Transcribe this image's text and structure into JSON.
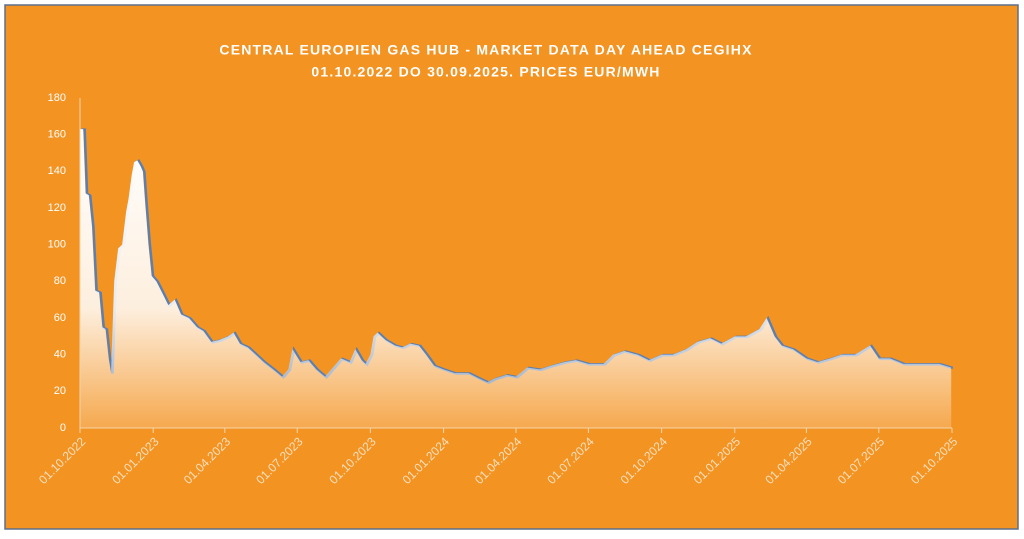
{
  "chart_data": {
    "type": "area",
    "title": "CENTRAL EUROPIEN GAS HUB - MARKET DATA DAY AHEAD CEGIHX",
    "subtitle": "01.10.2022 DO 30.09.2025. PRICES EUR/MWH",
    "line_color": "#5b7fb0",
    "area_color": "#ffffff",
    "background": "#f39322",
    "x": [
      "01.10.2022",
      "05.10.2022",
      "08.10.2022",
      "12.10.2022",
      "16.10.2022",
      "20.10.2022",
      "25.10.2022",
      "29.10.2022",
      "02.11.2022",
      "06.11.2022",
      "09.11.2022",
      "13.11.2022",
      "18.11.2022",
      "23.11.2022",
      "28.11.2022",
      "01.12.2022",
      "05.12.2022",
      "08.12.2022",
      "12.12.2022",
      "16.12.2022",
      "19.12.2022",
      "22.12.2022",
      "26.12.2022",
      "30.12.2022",
      "05.01.2023",
      "12.01.2023",
      "20.01.2023",
      "28.01.2023",
      "05.02.2023",
      "15.02.2023",
      "25.02.2023",
      "05.03.2023",
      "15.03.2023",
      "25.03.2023",
      "05.04.2023",
      "12.04.2023",
      "20.04.2023",
      "30.04.2023",
      "10.05.2023",
      "20.05.2023",
      "01.06.2023",
      "12.06.2023",
      "20.06.2023",
      "25.06.2023",
      "05.07.2023",
      "15.07.2023",
      "25.07.2023",
      "05.08.2023",
      "15.08.2023",
      "25.08.2023",
      "05.09.2023",
      "12.09.2023",
      "20.09.2023",
      "25.09.2023",
      "01.10.2023",
      "05.10.2023",
      "10.10.2023",
      "20.10.2023",
      "01.11.2023",
      "10.11.2023",
      "20.11.2023",
      "01.12.2023",
      "10.12.2023",
      "20.12.2023",
      "01.01.2024",
      "15.01.2024",
      "01.02.2024",
      "15.02.2024",
      "25.02.2024",
      "05.03.2024",
      "20.03.2024",
      "01.04.2024",
      "15.04.2024",
      "01.05.2024",
      "15.05.2024",
      "01.06.2024",
      "15.06.2024",
      "01.07.2024",
      "20.07.2024",
      "01.08.2024",
      "15.08.2024",
      "01.09.2024",
      "15.09.2024",
      "01.10.2024",
      "15.10.2024",
      "01.11.2024",
      "15.11.2024",
      "01.12.2024",
      "15.12.2024",
      "01.01.2025",
      "15.01.2025",
      "01.02.2025",
      "10.02.2025",
      "20.02.2025",
      "01.03.2025",
      "15.03.2025",
      "01.04.2025",
      "15.04.2025",
      "01.05.2025",
      "15.05.2025",
      "01.06.2025",
      "20.06.2025",
      "01.07.2025",
      "15.07.2025",
      "01.08.2025",
      "15.08.2025",
      "01.09.2025",
      "15.09.2025",
      "30.09.2025"
    ],
    "values": [
      163,
      163,
      128,
      127,
      110,
      75,
      74,
      55,
      54,
      38,
      30,
      80,
      98,
      100,
      118,
      125,
      138,
      145,
      146,
      143,
      140,
      122,
      100,
      83,
      80,
      74,
      67,
      70,
      62,
      60,
      55,
      53,
      47,
      48,
      50,
      52,
      46,
      44,
      40,
      36,
      32,
      28,
      32,
      43,
      36,
      37,
      32,
      28,
      33,
      38,
      36,
      43,
      37,
      35,
      40,
      50,
      52,
      48,
      45,
      44,
      46,
      45,
      40,
      34,
      32,
      30,
      30,
      27,
      25,
      27,
      29,
      28,
      33,
      32,
      34,
      36,
      37,
      35,
      35,
      40,
      42,
      40,
      37,
      40,
      40,
      43,
      47,
      49,
      46,
      50,
      50,
      54,
      60,
      50,
      45,
      43,
      38,
      36,
      38,
      40,
      40,
      45,
      38,
      38,
      35,
      35,
      35,
      35,
      33
    ],
    "xlim": [
      "01.10.2022",
      "01.10.2025"
    ],
    "xticks": [
      "01.10.2022",
      "01.01.2023",
      "01.04.2023",
      "01.07.2023",
      "01.10.2023",
      "01.01.2024",
      "01.04.2024",
      "01.07.2024",
      "01.10.2024",
      "01.01.2025",
      "01.04.2025",
      "01.07.2025",
      "01.10.2025"
    ],
    "ylim": [
      0,
      180
    ],
    "yticks": [
      0,
      20,
      40,
      60,
      80,
      100,
      120,
      140,
      160,
      180
    ],
    "grid": false
  }
}
